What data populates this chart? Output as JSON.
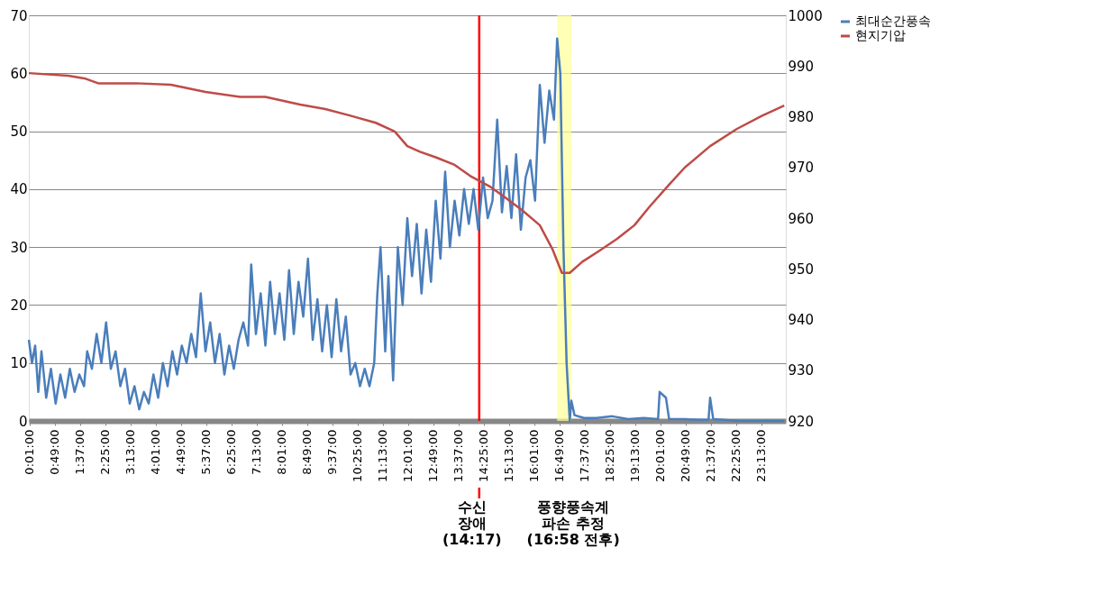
{
  "chart_data": {
    "type": "line",
    "xlim": [
      0,
      24
    ],
    "xticks": [
      {
        "value": 0.0167,
        "label": "0:01:00"
      },
      {
        "value": 0.8167,
        "label": "0:49:00"
      },
      {
        "value": 1.6167,
        "label": "1:37:00"
      },
      {
        "value": 2.4167,
        "label": "2:25:00"
      },
      {
        "value": 3.2167,
        "label": "3:13:00"
      },
      {
        "value": 4.0167,
        "label": "4:01:00"
      },
      {
        "value": 4.8167,
        "label": "4:49:00"
      },
      {
        "value": 5.6167,
        "label": "5:37:00"
      },
      {
        "value": 6.4167,
        "label": "6:25:00"
      },
      {
        "value": 7.2167,
        "label": "7:13:00"
      },
      {
        "value": 8.0167,
        "label": "8:01:00"
      },
      {
        "value": 8.8167,
        "label": "8:49:00"
      },
      {
        "value": 9.6167,
        "label": "9:37:00"
      },
      {
        "value": 10.4167,
        "label": "10:25:00"
      },
      {
        "value": 11.2167,
        "label": "11:13:00"
      },
      {
        "value": 12.0167,
        "label": "12:01:00"
      },
      {
        "value": 12.8167,
        "label": "12:49:00"
      },
      {
        "value": 13.6167,
        "label": "13:37:00"
      },
      {
        "value": 14.4167,
        "label": "14:25:00"
      },
      {
        "value": 15.2167,
        "label": "15:13:00"
      },
      {
        "value": 16.0167,
        "label": "16:01:00"
      },
      {
        "value": 16.8167,
        "label": "16:49:00"
      },
      {
        "value": 17.6167,
        "label": "17:37:00"
      },
      {
        "value": 18.4167,
        "label": "18:25:00"
      },
      {
        "value": 19.2167,
        "label": "19:13:00"
      },
      {
        "value": 20.0167,
        "label": "20:01:00"
      },
      {
        "value": 20.8167,
        "label": "20:49:00"
      },
      {
        "value": 21.6167,
        "label": "21:37:00"
      },
      {
        "value": 22.4167,
        "label": "22:25:00"
      },
      {
        "value": 23.2167,
        "label": "23:13:00"
      }
    ],
    "ylim": [
      0,
      70
    ],
    "yticks": [
      0,
      10,
      20,
      30,
      40,
      50,
      60,
      70
    ],
    "y2lim": [
      920,
      1000
    ],
    "y2ticks": [
      920,
      930,
      940,
      950,
      960,
      970,
      980,
      990,
      1000
    ],
    "grid": "y",
    "legend": "right",
    "marker": "none",
    "line_style": "solid",
    "series": [
      {
        "name": "최대순간풍속",
        "color": "#4a7ebb",
        "x": [
          0,
          0.1,
          0.2,
          0.3,
          0.4,
          0.55,
          0.7,
          0.85,
          1.0,
          1.15,
          1.3,
          1.45,
          1.6,
          1.75,
          1.85,
          2.0,
          2.15,
          2.3,
          2.45,
          2.6,
          2.75,
          2.9,
          3.05,
          3.2,
          3.35,
          3.5,
          3.65,
          3.8,
          3.95,
          4.1,
          4.25,
          4.4,
          4.55,
          4.7,
          4.85,
          5.0,
          5.15,
          5.3,
          5.45,
          5.6,
          5.75,
          5.9,
          6.05,
          6.2,
          6.35,
          6.5,
          6.65,
          6.8,
          6.95,
          7.05,
          7.2,
          7.35,
          7.5,
          7.65,
          7.8,
          7.95,
          8.1,
          8.25,
          8.4,
          8.55,
          8.7,
          8.85,
          9.0,
          9.15,
          9.3,
          9.45,
          9.6,
          9.75,
          9.9,
          10.05,
          10.2,
          10.35,
          10.5,
          10.65,
          10.8,
          10.95,
          11.05,
          11.15,
          11.3,
          11.4,
          11.55,
          11.7,
          11.85,
          12.0,
          12.15,
          12.3,
          12.45,
          12.6,
          12.75,
          12.9,
          13.05,
          13.2,
          13.35,
          13.5,
          13.65,
          13.8,
          13.95,
          14.1,
          14.25,
          14.4,
          14.55,
          14.7,
          14.85,
          15.0,
          15.15,
          15.3,
          15.45,
          15.6,
          15.75,
          15.9,
          16.05,
          16.2,
          16.35,
          16.5,
          16.65,
          16.75,
          16.85,
          16.95,
          17.05,
          17.15,
          17.2,
          17.3,
          17.6,
          18.0,
          18.5,
          19.0,
          19.5,
          19.95,
          20.0,
          20.2,
          20.3,
          20.8,
          21.3,
          21.55,
          21.6,
          21.7,
          22.5,
          23.95
        ],
        "values": [
          14,
          10,
          13,
          5,
          12,
          4,
          9,
          3,
          8,
          4,
          9,
          5,
          8,
          6,
          12,
          9,
          15,
          10,
          17,
          9,
          12,
          6,
          9,
          3,
          6,
          2,
          5,
          3,
          8,
          4,
          10,
          6,
          12,
          8,
          13,
          10,
          15,
          11,
          22,
          12,
          17,
          10,
          15,
          8,
          13,
          9,
          14,
          17,
          13,
          27,
          15,
          22,
          13,
          24,
          15,
          22,
          14,
          26,
          15,
          24,
          18,
          28,
          14,
          21,
          12,
          20,
          11,
          21,
          12,
          18,
          8,
          10,
          6,
          9,
          6,
          10,
          22,
          30,
          12,
          25,
          7,
          30,
          20,
          35,
          25,
          34,
          22,
          33,
          24,
          38,
          28,
          43,
          30,
          38,
          32,
          40,
          34,
          40,
          33,
          42,
          35,
          38,
          52,
          36,
          44,
          35,
          46,
          33,
          42,
          45,
          38,
          58,
          48,
          57,
          52,
          66,
          60,
          30,
          10,
          0,
          3.5,
          1,
          0.5,
          0.5,
          0.8,
          0.3,
          0.5,
          0.3,
          5,
          4,
          0.3,
          0.3,
          0.2,
          0.2,
          4,
          0.3,
          0,
          0
        ]
      },
      {
        "name": "현지기압",
        "color": "#be4b48",
        "axis": "y2",
        "x": [
          0,
          1.25,
          1.8,
          2.2,
          3.4,
          4.5,
          5.6,
          6.7,
          7.5,
          8.6,
          9.4,
          10.2,
          11.0,
          11.6,
          12.0,
          12.4,
          12.9,
          13.5,
          14.0,
          14.6,
          15.1,
          15.65,
          16.2,
          16.6,
          16.9,
          17.15,
          17.55,
          18.1,
          18.65,
          19.2,
          19.7,
          20.3,
          20.8,
          21.6,
          22.45,
          23.25,
          23.95
        ],
        "values": [
          988.6,
          988.1,
          987.5,
          986.6,
          986.6,
          986.3,
          984.9,
          983.9,
          983.9,
          982.4,
          981.5,
          980.2,
          978.8,
          977.1,
          974.2,
          973.1,
          972.0,
          970.5,
          968.3,
          966.3,
          964.1,
          961.5,
          958.6,
          953.9,
          949.2,
          949.2,
          951.4,
          953.6,
          955.9,
          958.6,
          962.4,
          966.6,
          970.0,
          974.2,
          977.6,
          980.2,
          982.2
        ]
      }
    ],
    "ref_lines": [
      {
        "axis": "x",
        "value": 14.28,
        "color": "#ff0000"
      }
    ],
    "bands": [
      {
        "axis": "x",
        "from": 16.75,
        "to": 17.2,
        "color": "#ffff99"
      }
    ],
    "annotations": [
      {
        "text": "수신\n장애\n(14:17)",
        "x": 14.28
      },
      "풍향풍속계\n파손 추정\n(16:58 전후)"
    ]
  }
}
